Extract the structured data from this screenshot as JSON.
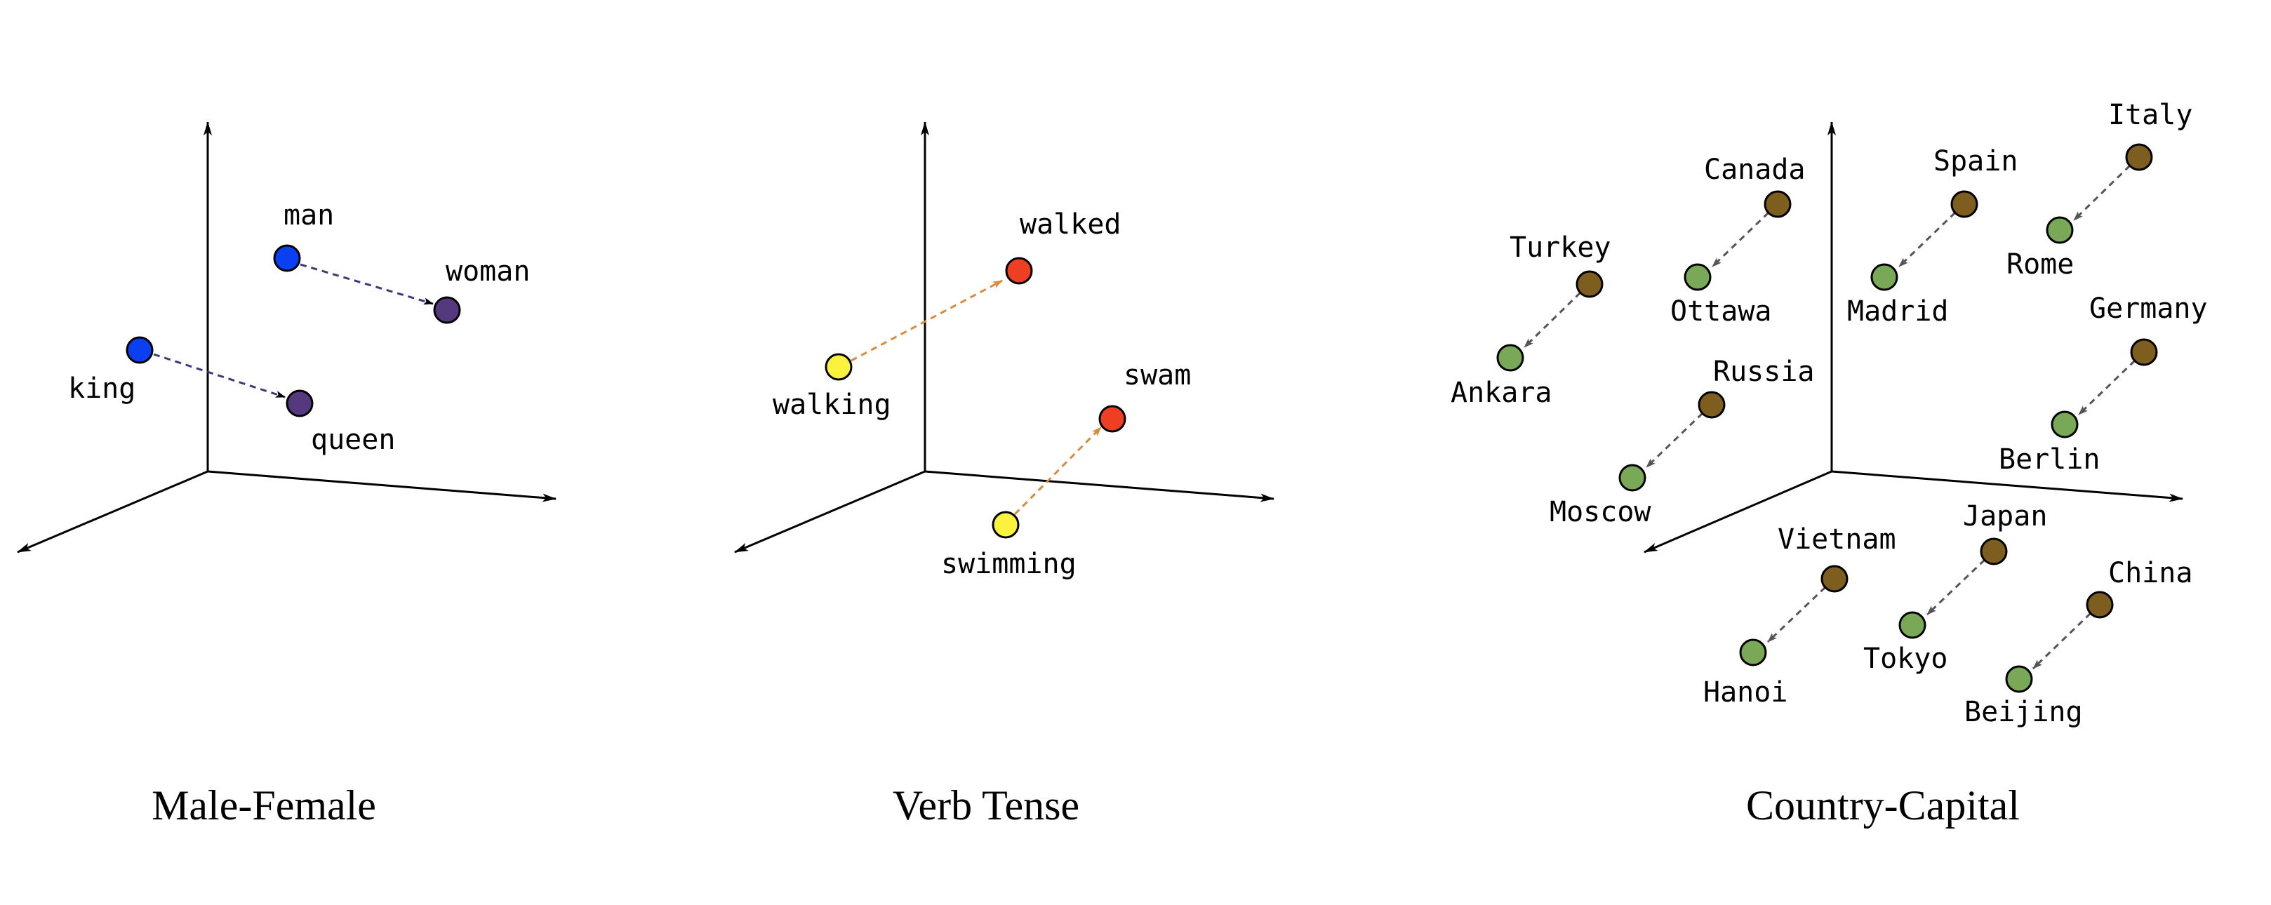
{
  "panels": [
    {
      "caption": "Male-Female",
      "arrow_color": "#3d3a78",
      "pairs": [
        {
          "from": {
            "label": "man",
            "color": "#0b3ff2"
          },
          "to": {
            "label": "woman",
            "color": "#55397f"
          }
        },
        {
          "from": {
            "label": "king",
            "color": "#0b3ff2"
          },
          "to": {
            "label": "queen",
            "color": "#55397f"
          }
        }
      ]
    },
    {
      "caption": "Verb Tense",
      "arrow_color": "#d98a3c",
      "pairs": [
        {
          "from": {
            "label": "walking",
            "color": "#fbf23e"
          },
          "to": {
            "label": "walked",
            "color": "#ee3f23"
          }
        },
        {
          "from": {
            "label": "swimming",
            "color": "#fbf23e"
          },
          "to": {
            "label": "swam",
            "color": "#ee3f23"
          }
        }
      ]
    },
    {
      "caption": "Country-Capital",
      "arrow_color": "#555555",
      "pairs": [
        {
          "from": {
            "label": "Turkey",
            "color": "#7d5e1f"
          },
          "to": {
            "label": "Ankara",
            "color": "#79a957"
          }
        },
        {
          "from": {
            "label": "Canada",
            "color": "#7d5e1f"
          },
          "to": {
            "label": "Ottawa",
            "color": "#79a957"
          }
        },
        {
          "from": {
            "label": "Spain",
            "color": "#7d5e1f"
          },
          "to": {
            "label": "Madrid",
            "color": "#79a957"
          }
        },
        {
          "from": {
            "label": "Italy",
            "color": "#7d5e1f"
          },
          "to": {
            "label": "Rome",
            "color": "#79a957"
          }
        },
        {
          "from": {
            "label": "Germany",
            "color": "#7d5e1f"
          },
          "to": {
            "label": "Berlin",
            "color": "#79a957"
          }
        },
        {
          "from": {
            "label": "Russia",
            "color": "#7d5e1f"
          },
          "to": {
            "label": "Moscow",
            "color": "#79a957"
          }
        },
        {
          "from": {
            "label": "Vietnam",
            "color": "#7d5e1f"
          },
          "to": {
            "label": "Hanoi",
            "color": "#79a957"
          }
        },
        {
          "from": {
            "label": "Japan",
            "color": "#7d5e1f"
          },
          "to": {
            "label": "Tokyo",
            "color": "#79a957"
          }
        },
        {
          "from": {
            "label": "China",
            "color": "#7d5e1f"
          },
          "to": {
            "label": "Beijing",
            "color": "#79a957"
          }
        }
      ]
    }
  ]
}
